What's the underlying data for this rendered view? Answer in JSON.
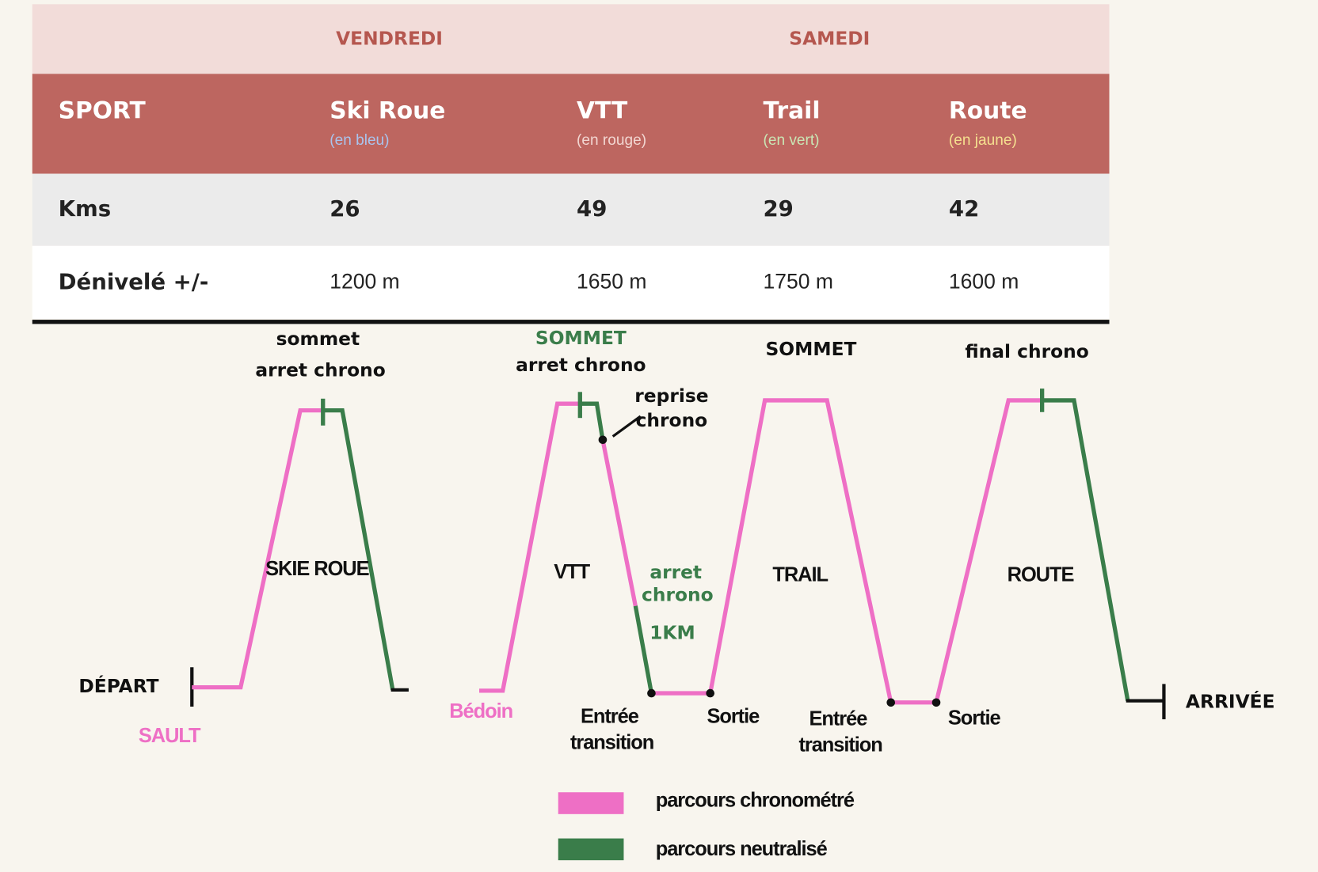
{
  "table": {
    "days": [
      "VENDREDI",
      "SAMEDI"
    ],
    "header": [
      {
        "name": "SPORT"
      },
      {
        "name": "Ski Roue",
        "note": "(en bleu)"
      },
      {
        "name": "VTT",
        "note": "(en rouge)"
      },
      {
        "name": "Trail",
        "note": "(en vert)"
      },
      {
        "name": "Route",
        "note": "(en jaune)"
      }
    ],
    "rows": [
      [
        "Kms",
        "26",
        "49",
        "29",
        "42"
      ],
      [
        "Dénivelé +/-",
        "1200 m",
        "1650 m",
        "1750 m",
        "1600 m"
      ]
    ]
  },
  "diagram": {
    "labels": [
      "sommet",
      "arret chrono",
      "SOMMET",
      "arret chrono",
      "reprise",
      "chrono",
      "SOMMET",
      "final chrono",
      "SKIE ROUE",
      "VTT",
      "arret",
      "chrono",
      "1KM",
      "TRAIL",
      "ROUTE",
      "DÉPART",
      "SAULT",
      "Bédoin",
      "Entrée",
      "transition",
      "Sortie",
      "Entrée",
      "transition",
      "Sortie",
      "ARRIVÉE"
    ]
  },
  "legend": [
    "parcours chronométré",
    "parcours neutralisé"
  ]
}
